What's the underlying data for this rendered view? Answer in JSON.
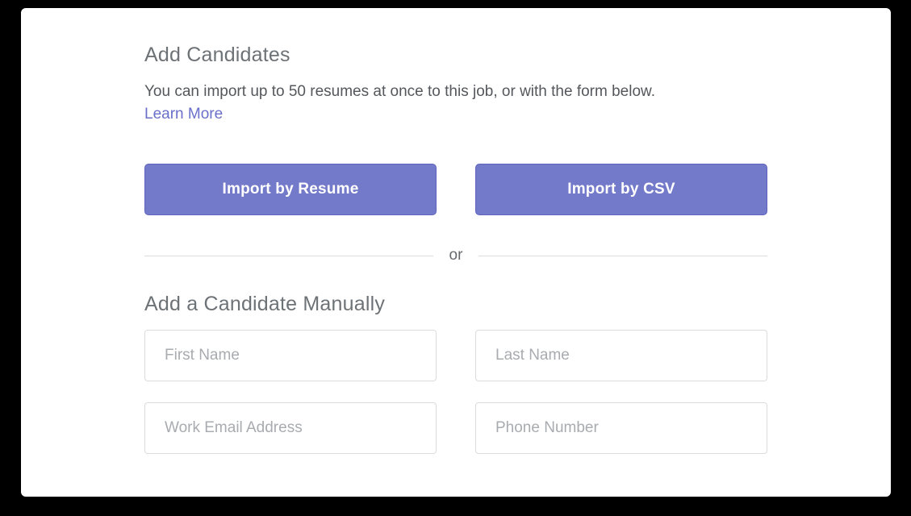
{
  "page": {
    "background_color": "#000000",
    "card_background_color": "#ffffff"
  },
  "header": {
    "title": "Add Candidates",
    "description": "You can import up to 50 resumes at once to this job, or with the form below.",
    "learn_more_label": "Learn More"
  },
  "import_actions": {
    "resume_button_label": "Import by Resume",
    "csv_button_label": "Import by CSV"
  },
  "divider": {
    "label": "or"
  },
  "manual_form": {
    "title": "Add a Candidate Manually",
    "fields": [
      {
        "name": "first-name",
        "placeholder": "First Name",
        "value": ""
      },
      {
        "name": "last-name",
        "placeholder": "Last Name",
        "value": ""
      },
      {
        "name": "work-email",
        "placeholder": "Work Email Address",
        "value": ""
      },
      {
        "name": "phone-number",
        "placeholder": "Phone Number",
        "value": ""
      }
    ]
  },
  "colors": {
    "accent_purple": "#747aca",
    "accent_purple_border": "#5f65bd",
    "link_purple": "#6a70c9",
    "heading_gray": "#6d7276",
    "body_gray": "#54575c",
    "placeholder_gray": "#a8abaf",
    "input_border": "#d9dbdd",
    "divider_line": "#d9dbdd"
  }
}
